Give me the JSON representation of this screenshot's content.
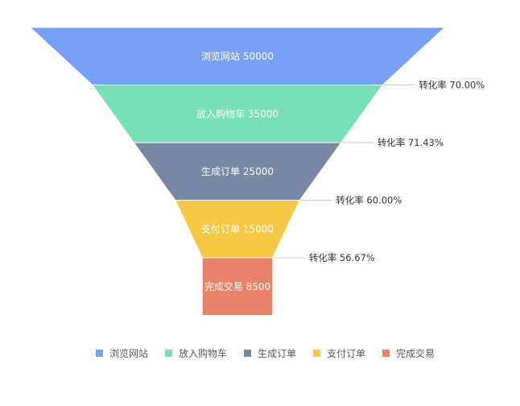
{
  "chart_data": {
    "type": "funnel",
    "stages": [
      {
        "name": "浏览网站",
        "value": 50000,
        "color": "#78a0f7"
      },
      {
        "name": "放入购物车",
        "value": 35000,
        "color": "#76e0b6"
      },
      {
        "name": "生成订单",
        "value": 25000,
        "color": "#7788a4"
      },
      {
        "name": "支付订单",
        "value": 15000,
        "color": "#f6c845"
      },
      {
        "name": "完成交易",
        "value": 8500,
        "color": "#ea8169"
      }
    ],
    "conversion_label": "转化率",
    "conversions": [
      "70.00%",
      "71.43%",
      "60.00%",
      "56.67%"
    ],
    "legend": {
      "position": "bottom",
      "items": [
        "浏览网站",
        "放入购物车",
        "生成订单",
        "支付订单",
        "完成交易"
      ]
    }
  }
}
